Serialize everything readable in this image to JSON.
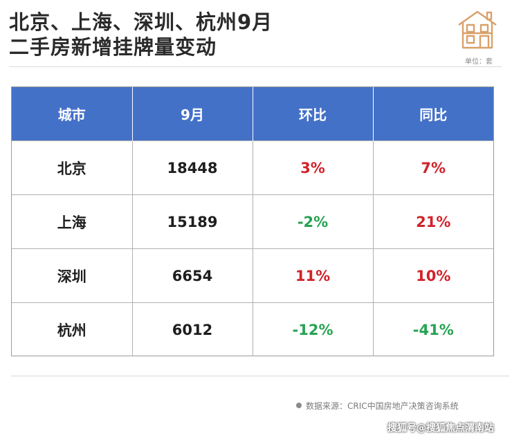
{
  "title": {
    "line1": "北京、上海、深圳、杭州9月",
    "line2": "二手房新增挂牌量变动"
  },
  "logo_icon": "house-icon",
  "unit": "单位：套",
  "table": {
    "headers": [
      "城市",
      "9月",
      "环比",
      "同比"
    ],
    "rows": [
      {
        "city": "北京",
        "sep": "18448",
        "mom": "3%",
        "yoy": "7%"
      },
      {
        "city": "上海",
        "sep": "15189",
        "mom": "-2%",
        "yoy": "21%"
      },
      {
        "city": "深圳",
        "sep": "6654",
        "mom": "11%",
        "yoy": "10%"
      },
      {
        "city": "杭州",
        "sep": "6012",
        "mom": "-12%",
        "yoy": "-41%"
      }
    ]
  },
  "colors": {
    "header_bg": "#4471c8",
    "positive": "#d0232a",
    "negative": "#26a352",
    "logo": "#d9a06a"
  },
  "source": "数据来源：CRIC中国房地产决策咨询系统",
  "credit": "搜狐号@搜狐焦点渭南站"
}
